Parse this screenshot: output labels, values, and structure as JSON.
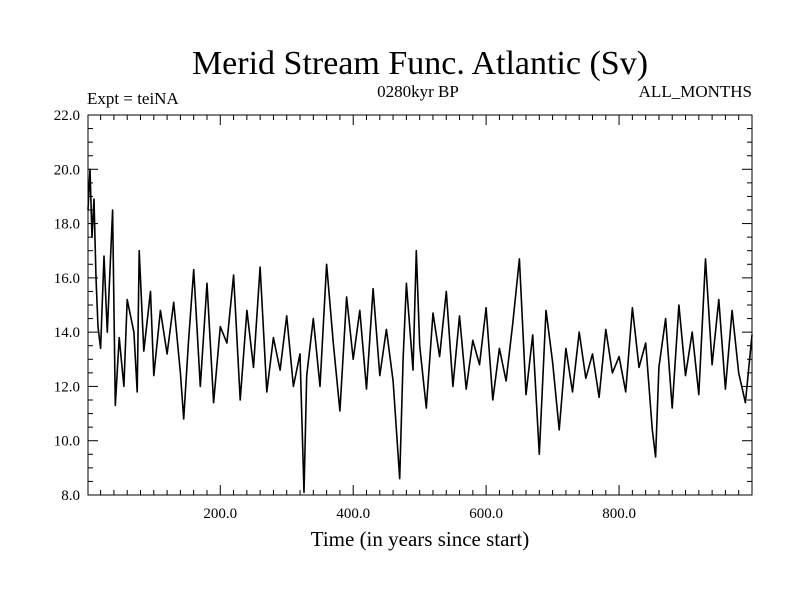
{
  "chart_data": {
    "type": "line",
    "title": "Merid Stream Func. Atlantic (Sv)",
    "subtitle_left": "Expt = teiNA",
    "subtitle_center": "0280kyr BP",
    "subtitle_right": "ALL_MONTHS",
    "xlabel": "Time (in years since start)",
    "ylabel": "",
    "xlim": [
      1,
      1000
    ],
    "ylim": [
      8.0,
      22.0
    ],
    "x_ticks": [
      200,
      400,
      600,
      800
    ],
    "x_tick_labels": [
      "200.0",
      "400.0",
      "600.0",
      "800.0"
    ],
    "y_ticks": [
      8,
      10,
      12,
      14,
      16,
      18,
      20,
      22
    ],
    "y_tick_labels": [
      "8.0",
      "10.0",
      "12.0",
      "14.0",
      "16.0",
      "18.0",
      "20.0",
      "22.0"
    ],
    "grid": false,
    "series": [
      {
        "name": "teiNA",
        "color": "#000000",
        "x": [
          1,
          4,
          7,
          10,
          13,
          16,
          20,
          25,
          30,
          38,
          42,
          48,
          55,
          60,
          70,
          75,
          78,
          85,
          95,
          100,
          110,
          120,
          130,
          140,
          145,
          152,
          160,
          170,
          180,
          190,
          200,
          210,
          220,
          230,
          240,
          250,
          260,
          270,
          280,
          290,
          300,
          310,
          320,
          326,
          330,
          340,
          350,
          360,
          370,
          380,
          390,
          400,
          410,
          420,
          430,
          440,
          450,
          460,
          470,
          475,
          480,
          490,
          495,
          500,
          510,
          520,
          530,
          540,
          550,
          560,
          570,
          580,
          590,
          600,
          610,
          620,
          630,
          640,
          650,
          660,
          670,
          680,
          690,
          700,
          710,
          720,
          730,
          740,
          750,
          760,
          770,
          780,
          790,
          800,
          810,
          820,
          830,
          840,
          850,
          855,
          860,
          870,
          880,
          890,
          900,
          910,
          920,
          930,
          940,
          950,
          960,
          970,
          980,
          990,
          1000
        ],
        "values": [
          18.5,
          20.0,
          17.5,
          18.9,
          16.0,
          14.2,
          13.4,
          16.8,
          14.0,
          18.5,
          11.3,
          13.8,
          12.0,
          15.2,
          14.0,
          11.8,
          17.0,
          13.3,
          15.5,
          12.4,
          14.8,
          13.2,
          15.1,
          12.5,
          10.8,
          13.6,
          16.3,
          12.0,
          15.8,
          11.4,
          14.2,
          13.6,
          16.1,
          11.5,
          14.8,
          12.7,
          16.4,
          11.8,
          13.8,
          12.6,
          14.6,
          12.0,
          13.2,
          8.1,
          12.4,
          14.5,
          12.0,
          16.5,
          13.6,
          11.1,
          15.3,
          13.0,
          14.8,
          11.9,
          15.6,
          12.4,
          14.1,
          12.2,
          8.6,
          13.0,
          15.8,
          12.6,
          17.0,
          13.5,
          11.2,
          14.7,
          13.1,
          15.5,
          12.0,
          14.6,
          11.9,
          13.7,
          12.8,
          14.9,
          11.5,
          13.4,
          12.2,
          14.3,
          16.7,
          11.7,
          13.9,
          9.5,
          14.8,
          12.9,
          10.4,
          13.4,
          11.8,
          14.0,
          12.3,
          13.2,
          11.6,
          14.1,
          12.5,
          13.1,
          11.8,
          14.9,
          12.7,
          13.6,
          10.4,
          9.4,
          12.7,
          14.5,
          11.2,
          15.0,
          12.4,
          14.0,
          11.7,
          16.7,
          12.8,
          15.2,
          11.9,
          14.8,
          12.5,
          11.4,
          13.9
        ]
      }
    ]
  }
}
